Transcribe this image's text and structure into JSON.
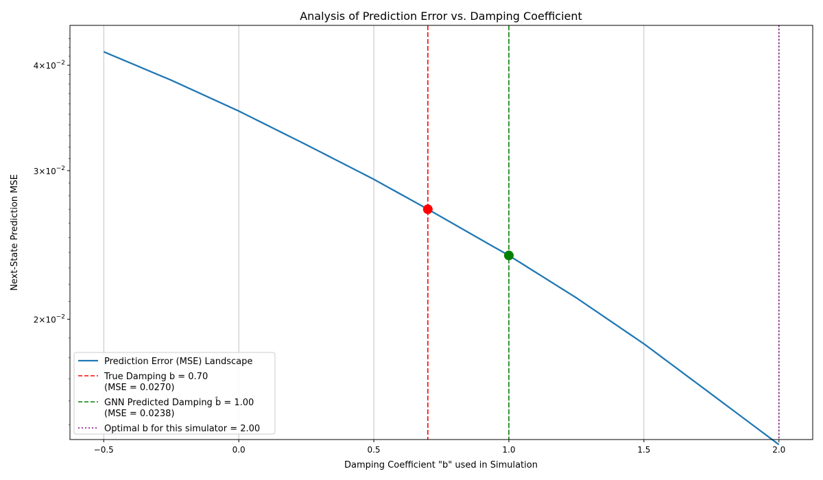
{
  "chart_data": {
    "type": "line",
    "title": "Analysis of Prediction Error vs. Damping Coefficient",
    "xlabel": "Damping Coefficient \"b\" used in Simulation",
    "ylabel": "Next-State Prediction MSE",
    "xlim": [
      -0.625,
      2.125
    ],
    "ylim": [
      0.0144,
      0.0446
    ],
    "yscale": "log",
    "grid": "x-only",
    "legend_position": "lower-left",
    "x_ticks": [
      {
        "value": -0.5,
        "label": "−0.5"
      },
      {
        "value": 0.0,
        "label": "0.0"
      },
      {
        "value": 0.5,
        "label": "0.5"
      },
      {
        "value": 1.0,
        "label": "1.0"
      },
      {
        "value": 1.5,
        "label": "1.5"
      },
      {
        "value": 2.0,
        "label": "2.0"
      }
    ],
    "y_ticks": [
      {
        "value": 0.02,
        "mantissa": "2",
        "label": "2×10⁻²"
      },
      {
        "value": 0.03,
        "mantissa": "3",
        "label": "3×10⁻²"
      },
      {
        "value": 0.04,
        "mantissa": "4",
        "label": "4×10⁻²"
      }
    ],
    "series": [
      {
        "name": "Prediction Error (MSE) Landscape",
        "color": "#1f77b4",
        "x": [
          -0.5,
          -0.25,
          0.0,
          0.25,
          0.5,
          0.7,
          1.0,
          1.25,
          1.5,
          1.75,
          2.0
        ],
        "y": [
          0.0415,
          0.0384,
          0.0353,
          0.0322,
          0.0293,
          0.027,
          0.0238,
          0.0212,
          0.0187,
          0.0163,
          0.0142
        ]
      }
    ],
    "reference_lines": [
      {
        "name": "True Damping b = 0.70\n(MSE = 0.0270)",
        "label_lines": [
          "True Damping b = 0.70",
          "(MSE = 0.0270)"
        ],
        "x": 0.7,
        "color": "#ff0000",
        "style": "dashed"
      },
      {
        "name": "GNN Predicted Damping b̂ = 1.00\n(MSE = 0.0238)",
        "label_lines": [
          "GNN Predicted Damping b̂ = 1.00",
          "(MSE = 0.0238)"
        ],
        "x": 1.0,
        "color": "#008000",
        "style": "dashed"
      },
      {
        "name": "Optimal b for this simulator = 2.00",
        "label_lines": [
          "Optimal b for this simulator = 2.00"
        ],
        "x": 2.0,
        "color": "#800080",
        "style": "dotted"
      }
    ],
    "markers": [
      {
        "x": 0.7,
        "y": 0.027,
        "color": "#ff0000"
      },
      {
        "x": 1.0,
        "y": 0.0238,
        "color": "#008000"
      }
    ]
  }
}
